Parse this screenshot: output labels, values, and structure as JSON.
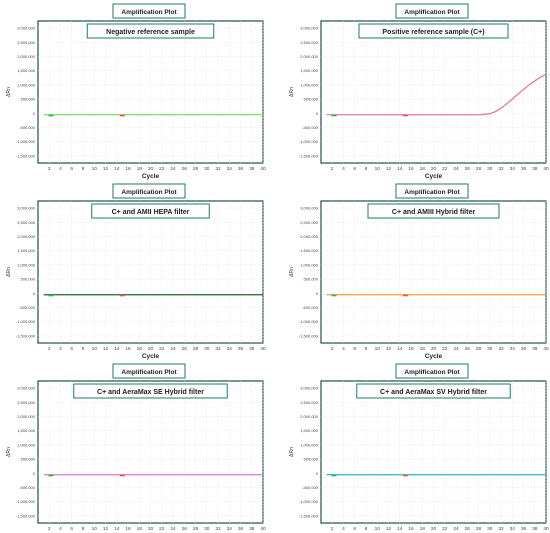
{
  "chart_data": [
    {
      "type": "line",
      "header": "Amplification Plot",
      "title": "Negative reference sample",
      "xlabel": "Cycle",
      "ylabel": "ΔRn",
      "x_ticks": [
        2,
        4,
        6,
        8,
        10,
        12,
        14,
        16,
        18,
        20,
        22,
        24,
        26,
        28,
        30,
        32,
        34,
        36,
        38,
        40
      ],
      "y_ticks": [
        -1500000,
        -1000000,
        -500000,
        0,
        500000,
        1000000,
        1500000,
        2000000,
        2500000,
        3000000
      ],
      "y_tick_labels": [
        "-1,500,000",
        "-1,000,000",
        "-500,000",
        "0",
        "500,000",
        "1,000,000",
        "1,500,000",
        "2,000,000",
        "2,500,000",
        "3,000,000"
      ],
      "xlim": [
        0,
        40
      ],
      "ylim": [
        -1750000,
        3250000
      ],
      "grid": true,
      "series": [
        {
          "color": "#7ee06a",
          "x": [
            1,
            40
          ],
          "y": [
            -50000,
            -50000
          ]
        }
      ],
      "markers": [
        {
          "x": 2.3,
          "color": "#2fb34a"
        },
        {
          "x": 15,
          "color": "#e8553a"
        }
      ]
    },
    {
      "type": "line",
      "header": "Amplification Plot",
      "title": "Positive reference sample (C+)",
      "xlabel": "Cycle",
      "ylabel": "ΔRn",
      "x_ticks": [
        2,
        4,
        6,
        8,
        10,
        12,
        14,
        16,
        18,
        20,
        22,
        24,
        26,
        28,
        30,
        32,
        34,
        36,
        38,
        40
      ],
      "y_ticks": [
        -1500000,
        -1000000,
        -500000,
        0,
        500000,
        1000000,
        1500000,
        2000000,
        2500000,
        3000000
      ],
      "y_tick_labels": [
        "-1,500,000",
        "-1,000,000",
        "-500,000",
        "0",
        "500,000",
        "1,000,000",
        "1,500,000",
        "2,000,000",
        "2,500,000",
        "3,000,000"
      ],
      "xlim": [
        0,
        40
      ],
      "ylim": [
        -1750000,
        3250000
      ],
      "grid": true,
      "series": [
        {
          "color": "#e67aa0",
          "x": [
            1,
            28,
            29,
            30,
            31,
            32,
            33,
            34,
            35,
            36,
            37,
            38,
            39,
            40
          ],
          "y": [
            -50000,
            -50000,
            -40000,
            -10000,
            60000,
            180000,
            330000,
            500000,
            670000,
            840000,
            1000000,
            1140000,
            1270000,
            1370000
          ]
        }
      ],
      "markers": [
        {
          "x": 2.3,
          "color": "#2fb34a"
        },
        {
          "x": 15,
          "color": "#e8553a"
        }
      ]
    },
    {
      "type": "line",
      "header": "Amplification Plot",
      "title": "C+ and AMII HEPA filter",
      "xlabel": "Cycle",
      "ylabel": "ΔRn",
      "x_ticks": [
        2,
        4,
        6,
        8,
        10,
        12,
        14,
        16,
        18,
        20,
        22,
        24,
        26,
        28,
        30,
        32,
        34,
        36,
        38,
        40
      ],
      "y_ticks": [
        -1500000,
        -1000000,
        -500000,
        0,
        500000,
        1000000,
        1500000,
        2000000,
        2500000,
        3000000
      ],
      "y_tick_labels": [
        "-1,500,000",
        "-1,000,000",
        "-500,000",
        "0",
        "500,000",
        "1,000,000",
        "1,500,000",
        "2,000,000",
        "2,500,000",
        "3,000,000"
      ],
      "xlim": [
        0,
        40
      ],
      "ylim": [
        -1750000,
        3250000
      ],
      "grid": true,
      "series": [
        {
          "color": "#1f6b2a",
          "x": [
            1,
            40
          ],
          "y": [
            -50000,
            -50000
          ]
        }
      ],
      "markers": [
        {
          "x": 2.3,
          "color": "#2fb34a"
        },
        {
          "x": 15,
          "color": "#e8553a"
        }
      ]
    },
    {
      "type": "line",
      "header": "Amplification Plot",
      "title": "C+ and AMIII Hybrid filter",
      "xlabel": "Cycle",
      "ylabel": "ΔRn",
      "x_ticks": [
        2,
        4,
        6,
        8,
        10,
        12,
        14,
        16,
        18,
        20,
        22,
        24,
        26,
        28,
        30,
        32,
        34,
        36,
        38,
        40
      ],
      "y_ticks": [
        -1500000,
        -1000000,
        -500000,
        0,
        500000,
        1000000,
        1500000,
        2000000,
        2500000,
        3000000
      ],
      "y_tick_labels": [
        "-1,500,000",
        "-1,000,000",
        "-500,000",
        "0",
        "500,000",
        "1,000,000",
        "1,500,000",
        "2,000,000",
        "2,500,000",
        "3,000,000"
      ],
      "xlim": [
        0,
        40
      ],
      "ylim": [
        -1750000,
        3250000
      ],
      "grid": true,
      "series": [
        {
          "color": "#f0a040",
          "x": [
            1,
            40
          ],
          "y": [
            -50000,
            -50000
          ]
        }
      ],
      "markers": [
        {
          "x": 2.3,
          "color": "#2fb34a"
        },
        {
          "x": 15,
          "color": "#e8553a"
        }
      ]
    },
    {
      "type": "line",
      "header": "Amplification Plot",
      "title": "C+ and AeraMax SE Hybrid filter",
      "xlabel": "Cycle",
      "ylabel": "ΔRn",
      "x_ticks": [
        2,
        4,
        6,
        8,
        10,
        12,
        14,
        16,
        18,
        20,
        22,
        24,
        26,
        28,
        30,
        32,
        34,
        36,
        38,
        40
      ],
      "y_ticks": [
        -1500000,
        -1000000,
        -500000,
        0,
        500000,
        1000000,
        1500000,
        2000000,
        2500000,
        3000000
      ],
      "y_tick_labels": [
        "-1,500,000",
        "-1,000,000",
        "-500,000",
        "0",
        "500,000",
        "1,000,000",
        "1,500,000",
        "2,000,000",
        "2,500,000",
        "3,000,000"
      ],
      "xlim": [
        0,
        40
      ],
      "ylim": [
        -1750000,
        3250000
      ],
      "grid": true,
      "series": [
        {
          "color": "#e07ad0",
          "x": [
            1,
            40
          ],
          "y": [
            -50000,
            -50000
          ]
        }
      ],
      "markers": [
        {
          "x": 2.3,
          "color": "#2fb34a"
        },
        {
          "x": 15,
          "color": "#e8553a"
        }
      ]
    },
    {
      "type": "line",
      "header": "Amplification Plot",
      "title": "C+ and AeraMax SV Hybrid filter",
      "xlabel": "Cycle",
      "ylabel": "ΔRn",
      "x_ticks": [
        2,
        4,
        6,
        8,
        10,
        12,
        14,
        16,
        18,
        20,
        22,
        24,
        26,
        28,
        30,
        32,
        34,
        36,
        38,
        40
      ],
      "y_ticks": [
        -1500000,
        -1000000,
        -500000,
        0,
        500000,
        1000000,
        1500000,
        2000000,
        2500000,
        3000000
      ],
      "y_tick_labels": [
        "-1,500,000",
        "-1,000,000",
        "-500,000",
        "0",
        "500,000",
        "1,000,000",
        "1,500,000",
        "2,000,000",
        "2,500,000",
        "3,000,000"
      ],
      "xlim": [
        0,
        40
      ],
      "ylim": [
        -1750000,
        3250000
      ],
      "grid": true,
      "series": [
        {
          "color": "#2ab8c8",
          "x": [
            1,
            40
          ],
          "y": [
            -50000,
            -50000
          ]
        }
      ],
      "markers": [
        {
          "x": 2.3,
          "color": "#2fb34a"
        },
        {
          "x": 15,
          "color": "#e8553a"
        }
      ]
    }
  ]
}
